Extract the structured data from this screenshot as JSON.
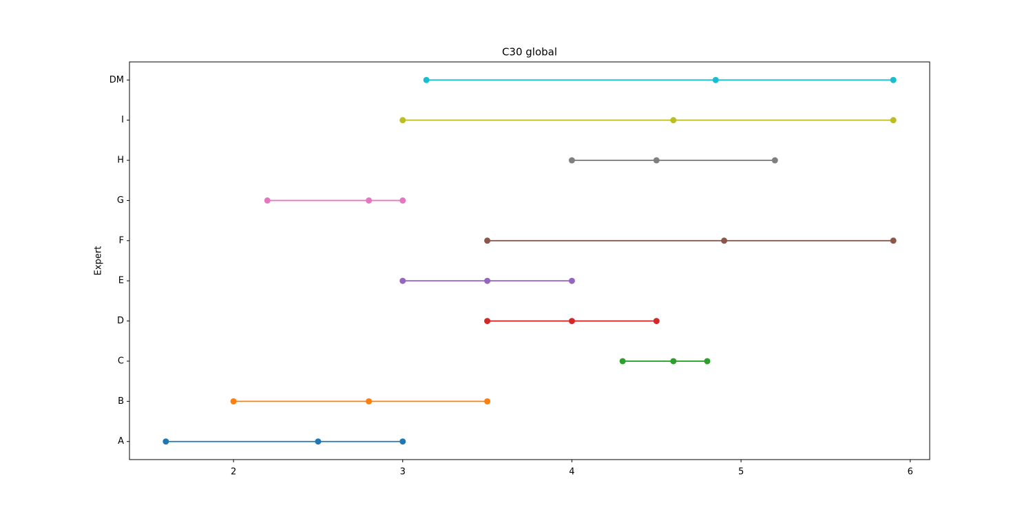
{
  "chart_data": {
    "type": "range",
    "title": "C30 global",
    "ylabel": "Expert",
    "categories": [
      "A",
      "B",
      "C",
      "D",
      "E",
      "F",
      "G",
      "H",
      "I",
      "DM"
    ],
    "colors": [
      "#1f77b4",
      "#ff7f0e",
      "#2ca02c",
      "#d62728",
      "#9467bd",
      "#8c564b",
      "#e377c2",
      "#7f7f7f",
      "#bcbd22",
      "#17becf"
    ],
    "values": [
      [
        1.6,
        2.5,
        3.0
      ],
      [
        2.0,
        2.8,
        3.5
      ],
      [
        4.3,
        4.6,
        4.8
      ],
      [
        3.5,
        4.0,
        4.5
      ],
      [
        3.0,
        3.5,
        4.0
      ],
      [
        3.5,
        4.9,
        5.9
      ],
      [
        2.2,
        2.8,
        3.0
      ],
      [
        4.0,
        4.5,
        5.2
      ],
      [
        3.0,
        4.6,
        5.9
      ],
      [
        3.14,
        4.85,
        5.9
      ]
    ],
    "xlim": [
      1.385,
      6.115
    ],
    "xticks": [
      2,
      3,
      4,
      5,
      6
    ],
    "grid": false
  }
}
